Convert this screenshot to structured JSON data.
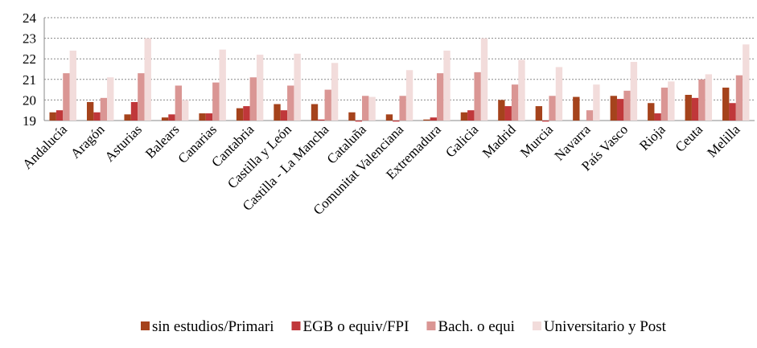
{
  "chart_data": {
    "type": "bar",
    "categories": [
      "Andalucía",
      "Aragón",
      "Asturias",
      "Balears",
      "Canarias",
      "Cantabria",
      "Castilla y León",
      "Castilla - La Mancha",
      "Cataluña",
      "Comunitat Valenciana",
      "Extremadura",
      "Galicia",
      "Madrid",
      "Murcia",
      "Navarra",
      "País Vasco",
      "Rioja",
      "Ceuta",
      "Melilla"
    ],
    "series": [
      {
        "name": "sin estudios/Primari",
        "color": "#a5431c",
        "values": [
          19.4,
          19.9,
          19.3,
          19.15,
          19.35,
          19.6,
          19.8,
          19.8,
          19.4,
          19.3,
          19.05,
          19.4,
          20.0,
          19.7,
          20.15,
          20.2,
          19.85,
          20.25,
          20.6
        ]
      },
      {
        "name": "EGB o equiv/FPI",
        "color": "#c0373a",
        "values": [
          19.5,
          19.4,
          19.9,
          19.3,
          19.35,
          19.7,
          19.5,
          19.05,
          18.95,
          18.95,
          19.15,
          19.5,
          19.7,
          18.95,
          19.0,
          20.05,
          19.35,
          20.1,
          19.85
        ]
      },
      {
        "name": "Bach. o equi",
        "color": "#da9694",
        "values": [
          21.3,
          20.1,
          21.3,
          20.7,
          20.85,
          21.1,
          20.7,
          20.5,
          20.2,
          20.2,
          21.3,
          21.35,
          20.75,
          20.2,
          19.5,
          20.45,
          20.6,
          21.0,
          21.2
        ]
      },
      {
        "name": "Universitario y Post",
        "color": "#f2dcdb",
        "values": [
          22.4,
          21.1,
          23.0,
          20.0,
          22.45,
          22.2,
          22.25,
          21.8,
          20.15,
          21.45,
          22.4,
          23.0,
          21.95,
          21.6,
          20.75,
          21.85,
          20.9,
          21.25,
          22.7
        ]
      }
    ],
    "ylim": [
      19,
      24
    ],
    "yticks": [
      19,
      20,
      21,
      22,
      23,
      24
    ],
    "grid": true,
    "legend": "bottom"
  }
}
